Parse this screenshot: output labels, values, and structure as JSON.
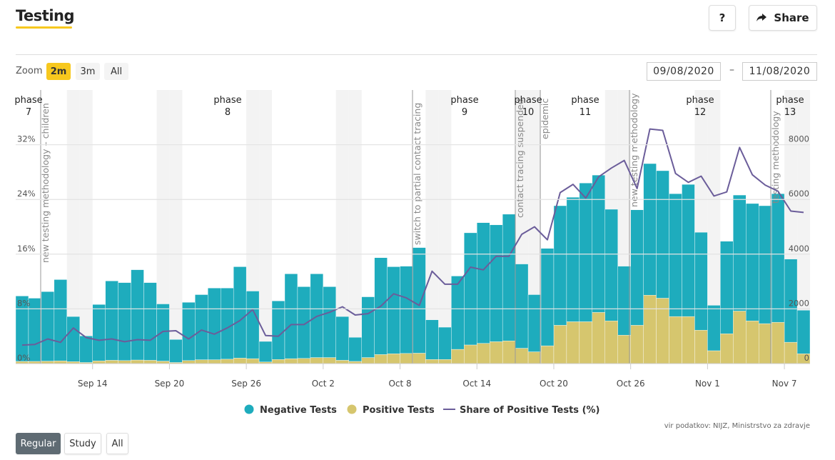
{
  "header": {
    "title": "Testing",
    "help": "?",
    "share": "Share"
  },
  "zoom": {
    "label": "Zoom",
    "options": [
      "2m",
      "3m",
      "All"
    ],
    "active": 0
  },
  "date_range": {
    "from": "09/08/2020",
    "separator": "–",
    "to": "11/08/2020"
  },
  "chart_data": {
    "type": "bar",
    "stacked": true,
    "categories": [
      null,
      null,
      null,
      null,
      null,
      null,
      "Sep 14",
      null,
      null,
      null,
      null,
      null,
      "Sep 20",
      null,
      null,
      null,
      null,
      null,
      "Sep 26",
      null,
      null,
      null,
      null,
      null,
      "Oct 2",
      null,
      null,
      null,
      null,
      null,
      "Oct 8",
      null,
      null,
      null,
      null,
      null,
      "Oct 14",
      null,
      null,
      null,
      null,
      null,
      "Oct 20",
      null,
      null,
      null,
      null,
      null,
      "Oct 26",
      null,
      null,
      null,
      null,
      null,
      "Nov 1",
      null,
      null,
      null,
      null,
      null,
      "Nov 7",
      null
    ],
    "series": [
      {
        "name": "Negative Tests",
        "color": "#1eacbd",
        "axis": "y2",
        "values": [
          2390,
          2310,
          2540,
          2970,
          1650,
          970,
          2060,
          2900,
          2850,
          3300,
          2840,
          2090,
          840,
          2130,
          2380,
          2620,
          2600,
          3340,
          2470,
          750,
          2140,
          3100,
          2620,
          3060,
          2590,
          1600,
          880,
          2220,
          3540,
          3180,
          3190,
          3860,
          1450,
          1180,
          2680,
          4100,
          4410,
          4270,
          4630,
          3080,
          2090,
          3560,
          4370,
          4550,
          5070,
          5020,
          4080,
          2520,
          4220,
          4810,
          4660,
          4490,
          4830,
          3580,
          1660,
          3380,
          4240,
          4290,
          4310,
          4700,
          3040,
          1590
        ]
      },
      {
        "name": "Positive Tests",
        "color": "#d6c66e",
        "axis": "y2",
        "values": [
          80,
          80,
          90,
          100,
          70,
          40,
          100,
          120,
          110,
          130,
          120,
          90,
          40,
          110,
          140,
          140,
          160,
          200,
          180,
          60,
          150,
          180,
          190,
          220,
          220,
          120,
          80,
          220,
          330,
          360,
          370,
          380,
          150,
          150,
          520,
          680,
          740,
          800,
          830,
          560,
          430,
          650,
          1400,
          1530,
          1530,
          1870,
          1560,
          1040,
          1400,
          2500,
          2390,
          1720,
          1720,
          1220,
          470,
          1090,
          1920,
          1560,
          1460,
          1510,
          780,
          360
        ]
      },
      {
        "name": "Share of Positive Tests (%)",
        "color": "#6b5d9a",
        "type": "line",
        "values": [
          2.7,
          2.8,
          3.6,
          3.1,
          5.2,
          3.8,
          3.4,
          3.6,
          3.2,
          3.5,
          3.4,
          4.7,
          4.8,
          3.6,
          4.9,
          4.3,
          5.2,
          6.3,
          7.9,
          4.1,
          4.0,
          5.7,
          5.7,
          6.9,
          7.5,
          8.3,
          7.1,
          7.3,
          8.4,
          10.2,
          9.6,
          8.5,
          13.5,
          11.6,
          11.6,
          14.1,
          13.7,
          15.7,
          15.7,
          18.9,
          20.0,
          18.1,
          25.0,
          26.2,
          24.2,
          27.3,
          28.6,
          29.7,
          25.6,
          34.3,
          34.1,
          27.8,
          26.5,
          27.4,
          24.5,
          25.1,
          31.6,
          27.6,
          26.1,
          25.2,
          22.3,
          22.1
        ]
      }
    ],
    "ylim": [
      0,
      40
    ],
    "yticks": [
      {
        "value": 0,
        "label": "0%"
      },
      {
        "value": 8,
        "label": "8%"
      },
      {
        "value": 16,
        "label": "16%"
      },
      {
        "value": 24,
        "label": "24%"
      },
      {
        "value": 32,
        "label": "32%"
      }
    ],
    "y2lim": [
      0,
      10000
    ],
    "y2ticks": [
      0,
      2000,
      4000,
      6000,
      8000
    ],
    "grid": true,
    "legend": "bottom",
    "phases": [
      {
        "label": "phase",
        "number": "7"
      },
      {
        "label": "phase",
        "number": "8"
      },
      {
        "label": "phase",
        "number": "9"
      },
      {
        "label": "phase",
        "number": "10"
      },
      {
        "label": "phase",
        "number": "11"
      },
      {
        "label": "phase",
        "number": "12"
      },
      {
        "label": "phase",
        "number": "13"
      }
    ],
    "annotations": [
      "new testing methodology – children",
      "switch to partial contact tracing",
      "contact tracing suspended",
      "epidemic",
      "new testing methodology",
      "testing methodology"
    ]
  },
  "source": "vir podatkov: NIJZ, Ministrstvo za zdravje",
  "views": {
    "options": [
      "Regular",
      "Study",
      "All"
    ],
    "active": 0
  }
}
